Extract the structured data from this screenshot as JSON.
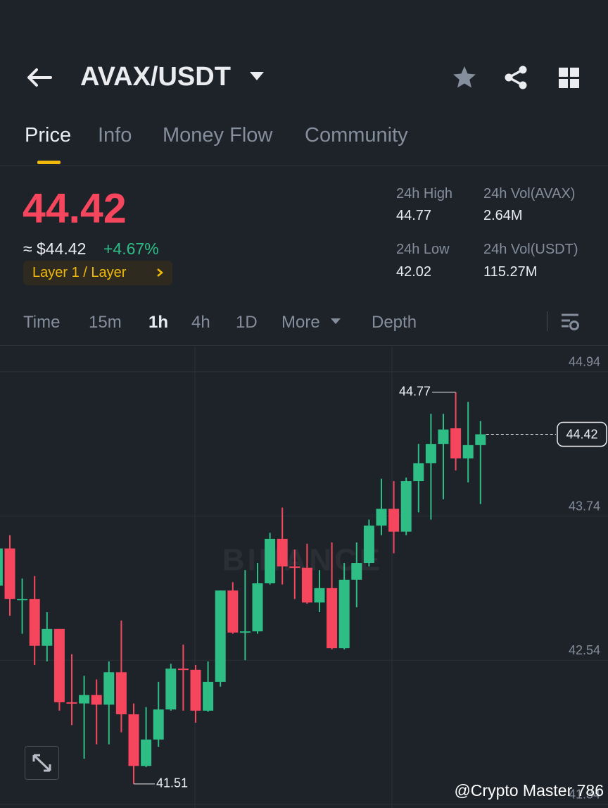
{
  "header": {
    "pair": "AVAX/USDT"
  },
  "tabs": {
    "items": [
      "Price",
      "Info",
      "Money Flow",
      "Community"
    ],
    "active": "Price"
  },
  "price": {
    "last": "44.42",
    "usd": "≈ $44.42",
    "change": "+4.67%",
    "tag": "Layer 1 / Layer"
  },
  "stats": [
    {
      "label": "24h High",
      "value": "44.77"
    },
    {
      "label": "24h Vol(AVAX)",
      "value": "2.64M"
    },
    {
      "label": "24h Low",
      "value": "42.02"
    },
    {
      "label": "24h Vol(USDT)",
      "value": "115.27M"
    }
  ],
  "timeframes": {
    "items": [
      "Time",
      "15m",
      "1h",
      "4h",
      "1D",
      "More",
      "Depth"
    ],
    "active": "1h"
  },
  "chart_data": {
    "type": "candlestick",
    "categories": [
      null,
      null,
      null,
      null,
      null,
      null,
      null,
      null,
      null,
      null,
      null,
      null,
      null,
      null,
      null,
      null,
      null,
      null,
      null,
      null,
      null,
      null,
      null,
      null,
      null,
      null,
      null,
      null,
      null,
      null,
      null,
      null,
      null,
      null,
      null,
      null,
      null,
      null,
      null,
      null
    ],
    "open": [
      43.16,
      43.47,
      43.05,
      43.05,
      42.66,
      42.8,
      42.19,
      42.18,
      42.25,
      42.17,
      42.44,
      42.09,
      41.66,
      41.88,
      42.13,
      42.47,
      42.46,
      42.12,
      42.36,
      43.12,
      42.77,
      42.78,
      43.18,
      43.55,
      43.32,
      43.31,
      43.02,
      43.14,
      42.64,
      43.21,
      43.35,
      43.66,
      43.8,
      43.61,
      44.03,
      44.18,
      44.34,
      44.47,
      44.22,
      44.33
    ],
    "high": [
      43.58,
      43.58,
      43.22,
      43.24,
      42.94,
      42.8,
      42.59,
      42.41,
      42.38,
      42.53,
      42.87,
      42.18,
      42.15,
      42.36,
      42.51,
      42.67,
      42.5,
      42.53,
      43.12,
      43.19,
      43.29,
      43.35,
      43.6,
      43.81,
      43.46,
      43.51,
      43.29,
      43.52,
      43.35,
      43.52,
      43.71,
      44.05,
      44.03,
      44.06,
      44.34,
      44.59,
      44.59,
      44.77,
      44.69,
      44.53
    ],
    "low": [
      43.03,
      42.91,
      42.76,
      42.5,
      42.53,
      42.12,
      42.0,
      41.72,
      41.84,
      41.84,
      41.94,
      41.51,
      41.65,
      41.82,
      42.12,
      42.12,
      42.02,
      42.11,
      42.32,
      42.76,
      42.54,
      42.76,
      43.17,
      43.17,
      43.05,
      43.01,
      42.94,
      42.63,
      42.63,
      42.98,
      43.32,
      43.58,
      43.43,
      43.58,
      43.77,
      43.71,
      43.88,
      44.12,
      44.02,
      43.84
    ],
    "close": [
      43.47,
      43.05,
      43.05,
      42.66,
      42.8,
      42.19,
      42.18,
      42.25,
      42.17,
      42.44,
      42.09,
      41.66,
      41.88,
      42.13,
      42.47,
      42.46,
      42.12,
      42.36,
      43.12,
      42.77,
      42.78,
      43.18,
      43.55,
      43.32,
      43.31,
      43.02,
      43.14,
      42.64,
      43.21,
      43.35,
      43.66,
      43.8,
      43.61,
      44.03,
      44.18,
      44.34,
      44.46,
      44.22,
      44.33,
      44.42
    ],
    "up_color": "#2ebd85",
    "down_color": "#f6465d",
    "ylim": [
      41.31,
      45.15
    ],
    "yticks": [
      44.94,
      43.74,
      42.54,
      41.34
    ],
    "grid": true,
    "last_price": 44.42,
    "high_price": 44.77,
    "low_price": 41.51,
    "watermark": "BINANCE",
    "credit": "@Crypto Master 786"
  }
}
